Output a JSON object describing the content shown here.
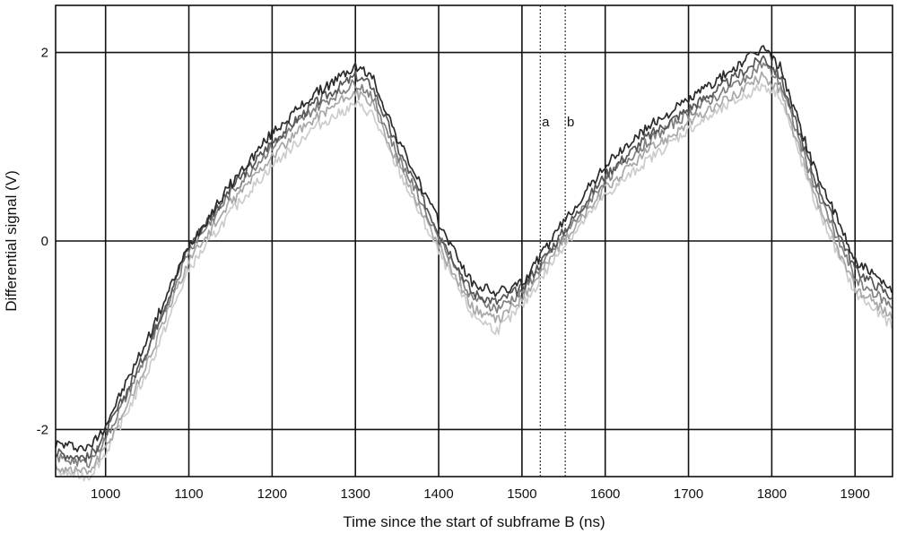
{
  "chart_data": {
    "type": "line",
    "title": "",
    "xlabel": "Time since the start of subframe B (ns)",
    "ylabel": "Differential signal (V)",
    "xlim": [
      940,
      1945
    ],
    "ylim": [
      -2.5,
      2.5
    ],
    "xticks": [
      1000,
      1100,
      1200,
      1300,
      1400,
      1500,
      1600,
      1700,
      1800,
      1900
    ],
    "xtick_labels": [
      "1000",
      "1100",
      "1200",
      "1300",
      "1400",
      "1500",
      "1600",
      "1700",
      "1800",
      "1900"
    ],
    "yticks": [
      -2,
      0,
      2
    ],
    "ytick_labels": [
      "-2",
      "0",
      "2"
    ],
    "grid": true,
    "markers": [
      {
        "label": "a",
        "x": 1522
      },
      {
        "label": "b",
        "x": 1552
      }
    ],
    "series": [
      {
        "color": "#2a2a2a",
        "x": [
          940,
          980,
          1000,
          1050,
          1100,
          1150,
          1200,
          1250,
          1300,
          1320,
          1350,
          1400,
          1440,
          1470,
          1500,
          1550,
          1600,
          1650,
          1700,
          1750,
          1790,
          1810,
          1850,
          1900,
          1945
        ],
        "y": [
          -2.15,
          -2.2,
          -1.95,
          -1.05,
          -0.05,
          0.6,
          1.15,
          1.55,
          1.85,
          1.75,
          1.1,
          0.2,
          -0.45,
          -0.55,
          -0.45,
          0.2,
          0.8,
          1.2,
          1.5,
          1.8,
          2.05,
          1.85,
          0.8,
          -0.2,
          -0.55
        ]
      },
      {
        "color": "#555555",
        "x": [
          940,
          980,
          1000,
          1050,
          1100,
          1150,
          1200,
          1250,
          1300,
          1320,
          1350,
          1400,
          1440,
          1470,
          1500,
          1550,
          1600,
          1650,
          1700,
          1750,
          1790,
          1810,
          1850,
          1900,
          1945
        ],
        "y": [
          -2.25,
          -2.3,
          -2.05,
          -1.15,
          -0.05,
          0.55,
          1.05,
          1.45,
          1.75,
          1.65,
          1.0,
          0.1,
          -0.55,
          -0.65,
          -0.5,
          0.1,
          0.7,
          1.1,
          1.4,
          1.7,
          1.95,
          1.75,
          0.7,
          -0.3,
          -0.6
        ]
      },
      {
        "color": "#808080",
        "x": [
          940,
          980,
          1000,
          1050,
          1100,
          1150,
          1200,
          1250,
          1300,
          1320,
          1350,
          1400,
          1440,
          1470,
          1500,
          1550,
          1600,
          1650,
          1700,
          1750,
          1790,
          1810,
          1850,
          1900,
          1945
        ],
        "y": [
          -2.3,
          -2.35,
          -2.1,
          -1.2,
          -0.1,
          0.5,
          1.0,
          1.4,
          1.68,
          1.55,
          0.92,
          0.05,
          -0.6,
          -0.72,
          -0.55,
          0.05,
          0.65,
          1.05,
          1.35,
          1.62,
          1.88,
          1.68,
          0.62,
          -0.4,
          -0.7
        ]
      },
      {
        "color": "#a8a8a8",
        "x": [
          940,
          980,
          1000,
          1050,
          1100,
          1150,
          1200,
          1250,
          1300,
          1320,
          1350,
          1400,
          1440,
          1470,
          1500,
          1550,
          1600,
          1650,
          1700,
          1750,
          1790,
          1810,
          1850,
          1900,
          1945
        ],
        "y": [
          -2.4,
          -2.45,
          -2.2,
          -1.3,
          -0.2,
          0.4,
          0.9,
          1.3,
          1.58,
          1.45,
          0.85,
          -0.05,
          -0.7,
          -0.85,
          -0.6,
          0.0,
          0.55,
          0.95,
          1.25,
          1.52,
          1.75,
          1.6,
          0.5,
          -0.5,
          -0.8
        ]
      },
      {
        "color": "#cccccc",
        "x": [
          940,
          980,
          1000,
          1050,
          1100,
          1150,
          1200,
          1250,
          1300,
          1320,
          1350,
          1400,
          1440,
          1470,
          1500,
          1550,
          1600,
          1650,
          1700,
          1750,
          1790,
          1810,
          1850,
          1900,
          1945
        ],
        "y": [
          -2.45,
          -2.5,
          -2.25,
          -1.4,
          -0.3,
          0.3,
          0.8,
          1.2,
          1.45,
          1.35,
          0.78,
          -0.12,
          -0.78,
          -0.95,
          -0.7,
          -0.05,
          0.48,
          0.85,
          1.18,
          1.45,
          1.65,
          1.55,
          0.45,
          -0.55,
          -0.9
        ]
      }
    ]
  }
}
